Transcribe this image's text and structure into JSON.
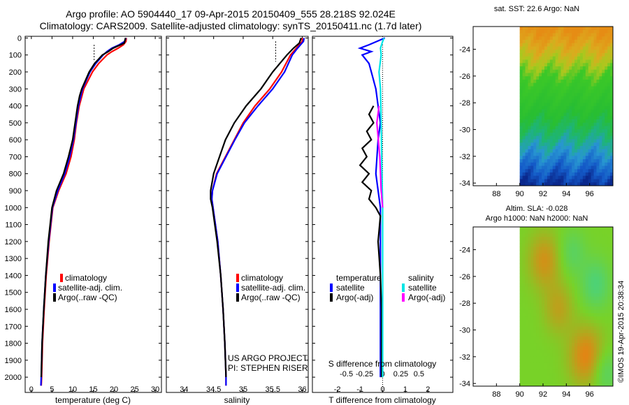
{
  "title": {
    "line1": "Argo profile: AO 5904440_17 09-Apr-2015 20150409_555 28.218S 92.024E",
    "line2": "Climatology: CARS2009. Satellite-adjusted climatology: synTS_20150411.nc (1.7d later)"
  },
  "colors": {
    "climatology": "#ff0000",
    "satellite": "#0000ff",
    "argo": "#000000",
    "sal_satellite": "#00e5e5",
    "sal_argo": "#ff00ff"
  },
  "chart_data": [
    {
      "id": "temperature",
      "type": "line",
      "xlabel": "temperature (deg C)",
      "ylabel": "",
      "xlim": [
        -1.5,
        31.5
      ],
      "ylim": [
        2090,
        -10
      ],
      "xticks": [
        0,
        5,
        10,
        15,
        20,
        25,
        30
      ],
      "yticks": [
        0,
        100,
        200,
        300,
        400,
        500,
        600,
        700,
        800,
        900,
        1000,
        1100,
        1200,
        1300,
        1400,
        1500,
        1600,
        1700,
        1800,
        1900,
        2000
      ],
      "legend": [
        "climatology",
        "satellite-adj. clim.",
        "Argo(..raw -QC)"
      ],
      "series": [
        {
          "name": "climatology",
          "depth": [
            0,
            20,
            40,
            60,
            80,
            100,
            150,
            200,
            300,
            400,
            500,
            600,
            700,
            800,
            900,
            1000,
            1200,
            1400,
            1600,
            1800,
            2000,
            2050
          ],
          "values": [
            23.0,
            22.9,
            22.3,
            21.0,
            19.5,
            18.3,
            16.3,
            14.8,
            12.7,
            11.6,
            10.9,
            10.4,
            9.6,
            8.4,
            6.6,
            5.2,
            4.3,
            3.6,
            3.1,
            2.7,
            2.5,
            2.4
          ]
        },
        {
          "name": "satellite-adj. clim.",
          "depth": [
            0,
            20,
            40,
            60,
            80,
            100,
            150,
            200,
            300,
            400,
            500,
            600,
            700,
            800,
            900,
            1000,
            1200,
            1400,
            1600,
            1800,
            2000,
            2050
          ],
          "values": [
            22.9,
            22.6,
            21.3,
            19.5,
            18.3,
            17.4,
            15.6,
            14.2,
            12.4,
            11.4,
            10.8,
            10.2,
            9.3,
            8.1,
            6.4,
            5.1,
            4.2,
            3.5,
            3.0,
            2.6,
            2.4,
            2.3
          ]
        },
        {
          "name": "Argo(..raw -QC)",
          "depth": [
            0,
            30,
            60,
            80,
            100,
            150,
            200,
            300,
            340,
            400,
            500,
            600,
            700,
            800,
            900,
            1000,
            1200,
            1400,
            1600,
            1800,
            2000
          ],
          "values": [
            22.8,
            22.5,
            19.8,
            18.6,
            17.2,
            15.3,
            14.0,
            12.2,
            11.7,
            11.2,
            10.6,
            10.0,
            9.0,
            7.8,
            6.1,
            5.0,
            4.1,
            3.5,
            3.0,
            2.6,
            2.4
          ]
        }
      ]
    },
    {
      "id": "salinity",
      "type": "line",
      "xlabel": "salinity",
      "xlim": [
        33.7,
        36.1
      ],
      "ylim": [
        2090,
        -10
      ],
      "xticks": [
        34,
        34.5,
        35,
        35.5,
        36
      ],
      "xticklabels": [
        "34",
        "34.5",
        "35",
        "35.5",
        "36"
      ],
      "legend": [
        "climatology",
        "satellite-adj. clim.",
        "Argo(..raw -QC)"
      ],
      "series": [
        {
          "name": "climatology",
          "depth": [
            0,
            20,
            60,
            100,
            200,
            300,
            400,
            500,
            600,
            700,
            800,
            900,
            950,
            1000,
            1200,
            1400,
            1600,
            1800,
            2000,
            2050
          ],
          "values": [
            36.0,
            36.0,
            35.9,
            35.8,
            35.65,
            35.45,
            35.2,
            35.0,
            34.85,
            34.7,
            34.55,
            34.48,
            34.47,
            34.49,
            34.57,
            34.62,
            34.66,
            34.69,
            34.71,
            34.71
          ]
        },
        {
          "name": "satellite-adj. clim.",
          "depth": [
            0,
            20,
            60,
            100,
            200,
            300,
            400,
            500,
            600,
            700,
            800,
            900,
            950,
            1000,
            1200,
            1400,
            1600,
            1800,
            2000,
            2050
          ],
          "values": [
            36.03,
            36.02,
            35.92,
            35.83,
            35.7,
            35.5,
            35.25,
            35.02,
            34.86,
            34.71,
            34.56,
            34.48,
            34.47,
            34.49,
            34.57,
            34.62,
            34.66,
            34.69,
            34.71,
            34.71
          ]
        },
        {
          "name": "Argo(..raw -QC)",
          "depth": [
            0,
            30,
            60,
            100,
            200,
            300,
            400,
            500,
            600,
            700,
            800,
            900,
            950,
            1000,
            1200,
            1400,
            1600,
            1800,
            2000
          ],
          "values": [
            35.98,
            35.95,
            35.85,
            35.74,
            35.5,
            35.3,
            35.05,
            34.85,
            34.7,
            34.6,
            34.5,
            34.45,
            34.45,
            34.48,
            34.56,
            34.62,
            34.66,
            34.69,
            34.71
          ]
        }
      ]
    },
    {
      "id": "difference",
      "type": "line",
      "xlabel": "T difference from climatology",
      "xlabel2": "S difference from climatology",
      "xlim": [
        -3.1,
        3.1
      ],
      "ylim": [
        2090,
        -10
      ],
      "xticks": [
        -2,
        -1,
        0,
        1,
        2
      ],
      "xticks2": [
        -0.5,
        -0.25,
        0,
        0.25,
        0.5
      ],
      "xticklabels2": [
        "-0.5",
        "-0.25",
        "0",
        "0.25",
        "0.5"
      ],
      "legend_headers": [
        "temperature",
        "salinity"
      ],
      "legend": [
        "satellite",
        "Argo(-adj)",
        "satellite",
        "Argo(-adj)"
      ],
      "series": [
        {
          "name": "T satellite",
          "depth": [
            0,
            40,
            60,
            80,
            100,
            150,
            200,
            300,
            400,
            500,
            600,
            800,
            900,
            1000,
            1200,
            1600,
            2000
          ],
          "values": [
            0.1,
            -0.6,
            -1.0,
            -0.5,
            -0.9,
            -0.6,
            -0.5,
            -0.3,
            -0.2,
            -0.1,
            -0.2,
            -0.3,
            -0.2,
            -0.1,
            -0.1,
            -0.1,
            -0.1
          ]
        },
        {
          "name": "T Argo(-adj)",
          "depth": [
            400,
            450,
            500,
            550,
            600,
            650,
            700,
            750,
            800,
            850,
            900,
            950,
            1000,
            1050,
            1200,
            1400,
            1600,
            2000
          ],
          "values": [
            -0.4,
            -0.6,
            -0.4,
            -0.7,
            -0.5,
            -0.9,
            -0.7,
            -1.0,
            -0.6,
            -0.9,
            -0.5,
            -0.6,
            -0.3,
            -0.1,
            -0.2,
            -0.1,
            -0.05,
            -0.05
          ]
        },
        {
          "name": "S satellite",
          "depth": [
            0,
            20,
            60,
            100,
            200,
            300,
            500,
            800,
            1000,
            1500,
            2000
          ],
          "values": [
            0.02,
            0.0,
            -0.03,
            -0.02,
            -0.05,
            -0.03,
            -0.02,
            -0.01,
            0.0,
            0.0,
            0.0
          ]
        },
        {
          "name": "S Argo(-adj)",
          "depth": [
            400,
            500,
            600,
            700,
            800,
            900,
            1000
          ],
          "values": [
            -0.05,
            -0.08,
            -0.06,
            -0.04,
            -0.03,
            -0.02,
            0.0
          ]
        }
      ]
    },
    {
      "id": "sst_map",
      "type": "heatmap",
      "title": "sat. SST: 22.6  Argo: NaN",
      "xlim": [
        86,
        98
      ],
      "ylim": [
        -34.2,
        -22.3
      ],
      "xticks": [
        88,
        90,
        92,
        94,
        96
      ],
      "yticks": [
        -24,
        -26,
        -28,
        -30,
        -32,
        -34
      ]
    },
    {
      "id": "sla_map",
      "type": "heatmap",
      "title": "Altim. SLA: -0.028",
      "title2": "Argo h1000: NaN h2000: NaN",
      "xlim": [
        86,
        98
      ],
      "ylim": [
        -34.2,
        -22.3
      ],
      "xticks": [
        88,
        90,
        92,
        94,
        96
      ],
      "yticks": [
        -24,
        -26,
        -28,
        -30,
        -32,
        -34
      ]
    }
  ],
  "panel_texts": {
    "project": "US ARGO PROJECT",
    "pi": "PI: STEPHEN RISER",
    "credit": "©IMOS 19-Apr-2015 20:38:34"
  }
}
